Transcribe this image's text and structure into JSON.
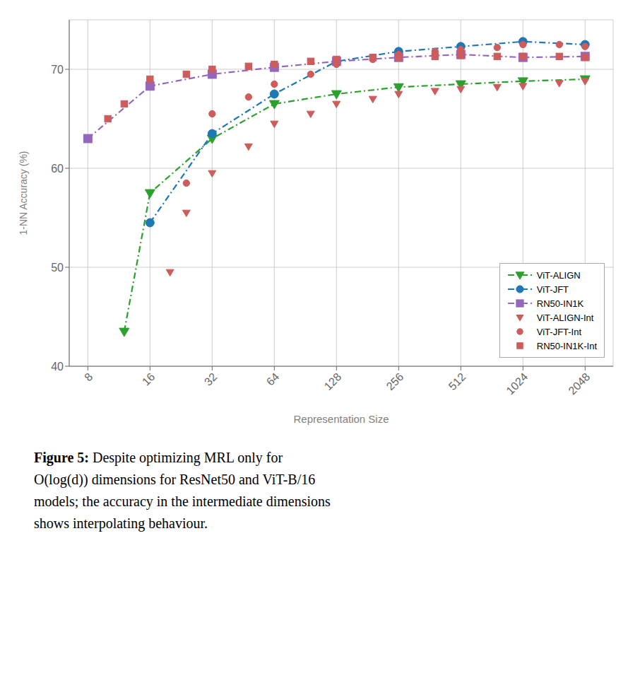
{
  "chart_data": {
    "type": "line",
    "xlabel": "Representation Size",
    "ylabel": "1-NN Accuracy (%)",
    "log": "x",
    "xlim": [
      6.5,
      2800
    ],
    "xticks": [
      8,
      16,
      32,
      64,
      128,
      256,
      512,
      1024,
      2048
    ],
    "ylim": [
      40,
      75
    ],
    "yticks": [
      40,
      50,
      60,
      70
    ],
    "grid": true,
    "legend": "lower right",
    "annotations": [
      "Figure 5:",
      "Despite optimizing MRL only for O(log(d)) dimensions for ResNet50 and ViT-B/16 models; the accuracy in the intermediate dimensions shows interpolating behaviour."
    ],
    "series": [
      {
        "name": "ViT-ALIGN",
        "type": "line",
        "color": "#2ca02c",
        "marker": "triangle_down",
        "line_style": "dashdot",
        "x": [
          12,
          16,
          32,
          64,
          128,
          256,
          512,
          1024,
          2048
        ],
        "values": [
          43.5,
          57.5,
          63.0,
          66.5,
          67.5,
          68.2,
          68.5,
          68.8,
          69.0
        ]
      },
      {
        "name": "ViT-JFT",
        "type": "line",
        "color": "#1f77b4",
        "marker": "circle",
        "line_style": "dashdot",
        "x": [
          16,
          32,
          64,
          128,
          256,
          512,
          1024,
          2048
        ],
        "values": [
          54.5,
          63.5,
          67.5,
          70.8,
          71.8,
          72.3,
          72.8,
          72.5
        ]
      },
      {
        "name": "RN50-IN1K",
        "type": "line",
        "color": "#9467bd",
        "marker": "square",
        "line_style": "dashdot",
        "x": [
          8,
          16,
          32,
          64,
          128,
          256,
          512,
          1024,
          2048
        ],
        "values": [
          63.0,
          68.3,
          69.5,
          70.2,
          70.8,
          71.2,
          71.5,
          71.2,
          71.3
        ]
      },
      {
        "name": "ViT-ALIGN-Int",
        "type": "scatter",
        "color": "#cd5c5c",
        "marker": "triangle_down",
        "x": [
          20,
          24,
          32,
          48,
          64,
          96,
          128,
          192,
          256,
          384,
          512,
          768,
          1024,
          1536,
          2048
        ],
        "values": [
          49.5,
          55.5,
          59.5,
          62.2,
          64.5,
          65.5,
          66.5,
          67.0,
          67.5,
          67.8,
          68.0,
          68.2,
          68.3,
          68.6,
          68.8
        ]
      },
      {
        "name": "ViT-JFT-Int",
        "type": "scatter",
        "color": "#cd5c5c",
        "marker": "circle",
        "x": [
          24,
          32,
          48,
          64,
          96,
          128,
          192,
          256,
          384,
          512,
          768,
          1024,
          1536,
          2048
        ],
        "values": [
          58.5,
          65.5,
          67.2,
          68.5,
          69.5,
          70.5,
          71.0,
          71.5,
          71.8,
          72.0,
          72.2,
          72.5,
          72.5,
          72.3
        ]
      },
      {
        "name": "RN50-IN1K-Int",
        "type": "scatter",
        "color": "#cd5c5c",
        "marker": "square",
        "x": [
          10,
          12,
          16,
          24,
          32,
          48,
          64,
          96,
          128,
          192,
          256,
          384,
          512,
          768,
          1024,
          1536,
          2048
        ],
        "values": [
          65.0,
          66.5,
          69.0,
          69.5,
          70.0,
          70.3,
          70.5,
          70.8,
          71.0,
          71.2,
          71.2,
          71.3,
          71.4,
          71.3,
          71.3,
          71.3,
          71.2
        ]
      }
    ]
  }
}
